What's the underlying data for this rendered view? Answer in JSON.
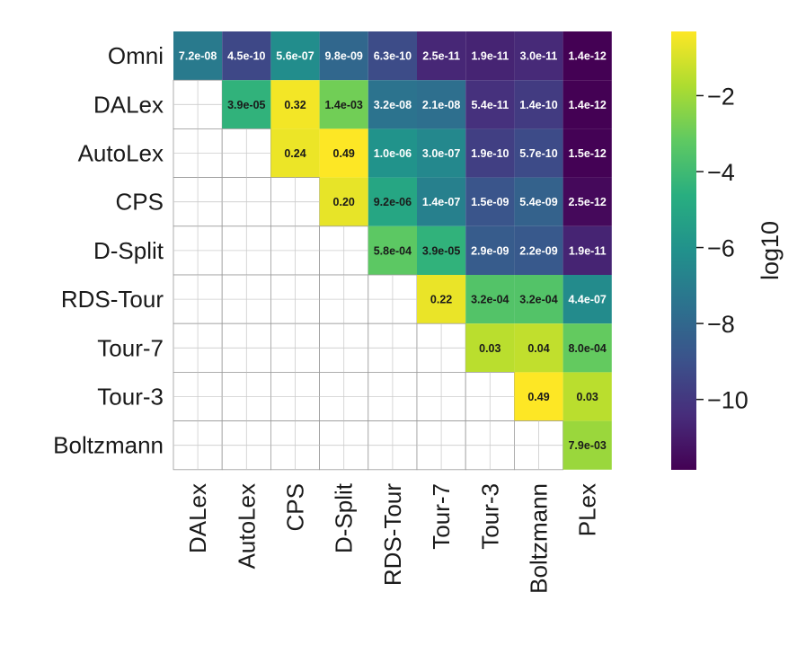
{
  "chart_data": {
    "type": "heatmap",
    "title": "",
    "rows": [
      "Omni",
      "DALex",
      "AutoLex",
      "CPS",
      "D-Split",
      "RDS-Tour",
      "Tour-7",
      "Tour-3",
      "Boltzmann"
    ],
    "columns": [
      "DALex",
      "AutoLex",
      "CPS",
      "D-Split",
      "RDS-Tour",
      "Tour-7",
      "Tour-3",
      "Boltzmann",
      "PLex"
    ],
    "cells": [
      [
        "7.2e-08",
        "4.5e-10",
        "5.6e-07",
        "9.8e-09",
        "6.3e-10",
        "2.5e-11",
        "1.9e-11",
        "3.0e-11",
        "1.4e-12"
      ],
      [
        null,
        "3.9e-05",
        "0.32",
        "1.4e-03",
        "3.2e-08",
        "2.1e-08",
        "5.4e-11",
        "1.4e-10",
        "1.4e-12"
      ],
      [
        null,
        null,
        "0.24",
        "0.49",
        "1.0e-06",
        "3.0e-07",
        "1.9e-10",
        "5.7e-10",
        "1.5e-12"
      ],
      [
        null,
        null,
        null,
        "0.20",
        "9.2e-06",
        "1.4e-07",
        "1.5e-09",
        "5.4e-09",
        "2.5e-12"
      ],
      [
        null,
        null,
        null,
        null,
        "5.8e-04",
        "3.9e-05",
        "2.9e-09",
        "2.2e-09",
        "1.9e-11"
      ],
      [
        null,
        null,
        null,
        null,
        null,
        "0.22",
        "3.2e-04",
        "3.2e-04",
        "4.4e-07"
      ],
      [
        null,
        null,
        null,
        null,
        null,
        null,
        "0.03",
        "0.04",
        "8.0e-04"
      ],
      [
        null,
        null,
        null,
        null,
        null,
        null,
        null,
        "0.49",
        "0.03"
      ],
      [
        null,
        null,
        null,
        null,
        null,
        null,
        null,
        null,
        "7.9e-03"
      ]
    ],
    "colorbar": {
      "label": "log10",
      "ticks": [
        "−2",
        "−4",
        "−6",
        "−8",
        "−10"
      ],
      "tick_values": [
        -2,
        -4,
        -6,
        -8,
        -10
      ],
      "range": [
        -11.853,
        -0.31
      ],
      "colormap": "viridis"
    }
  }
}
